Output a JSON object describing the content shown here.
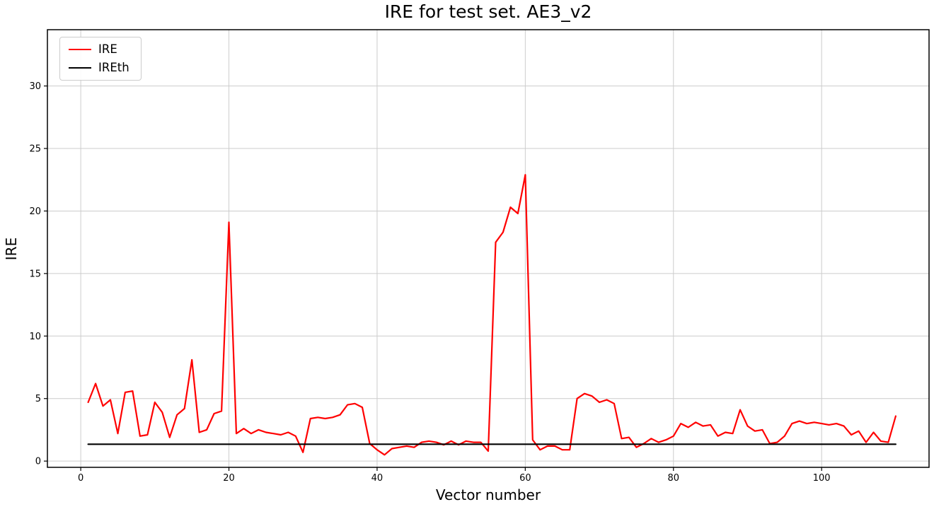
{
  "title": "IRE for test set. AE3_v2",
  "chart_data": {
    "type": "line",
    "title": "IRE for test set. AE3_v2",
    "xlabel": "Vector number",
    "ylabel": "IRE",
    "xlim": [
      -4.5,
      114.5
    ],
    "ylim": [
      -0.5,
      34.5
    ],
    "xticks": [
      0,
      20,
      40,
      60,
      80,
      100
    ],
    "yticks": [
      0,
      5,
      10,
      15,
      20,
      25,
      30
    ],
    "grid": true,
    "legend_position": "upper-left",
    "colors": {
      "ire": "#ff0000",
      "ireth": "#000000",
      "grid": "#cccccc",
      "spine": "#000000"
    },
    "threshold_value": 1.35,
    "series": [
      {
        "name": "IRE",
        "color": "#ff0000",
        "x": [
          1,
          2,
          3,
          4,
          5,
          6,
          7,
          8,
          9,
          10,
          11,
          12,
          13,
          14,
          15,
          16,
          17,
          18,
          19,
          20,
          21,
          22,
          23,
          24,
          25,
          26,
          27,
          28,
          29,
          30,
          31,
          32,
          33,
          34,
          35,
          36,
          37,
          38,
          39,
          40,
          41,
          42,
          43,
          44,
          45,
          46,
          47,
          48,
          49,
          50,
          51,
          52,
          53,
          54,
          55,
          56,
          57,
          58,
          59,
          60,
          61,
          62,
          63,
          64,
          65,
          66,
          67,
          68,
          69,
          70,
          71,
          72,
          73,
          74,
          75,
          76,
          77,
          78,
          79,
          80,
          81,
          82,
          83,
          84,
          85,
          86,
          87,
          88,
          89,
          90,
          91,
          92,
          93,
          94,
          95,
          96,
          97,
          98,
          99,
          100,
          101,
          102,
          103,
          104,
          105,
          106,
          107,
          108,
          109,
          110
        ],
        "y": [
          4.7,
          6.2,
          4.4,
          4.9,
          2.2,
          5.5,
          5.6,
          2.0,
          2.1,
          4.7,
          3.9,
          1.9,
          3.7,
          4.2,
          8.1,
          2.3,
          2.5,
          3.8,
          4.0,
          19.1,
          2.2,
          2.6,
          2.2,
          2.5,
          2.3,
          2.2,
          2.1,
          2.3,
          2.0,
          0.7,
          3.4,
          3.5,
          3.4,
          3.5,
          3.7,
          4.5,
          4.6,
          4.3,
          1.4,
          0.9,
          0.5,
          1.0,
          1.1,
          1.2,
          1.1,
          1.5,
          1.6,
          1.5,
          1.3,
          1.6,
          1.3,
          1.6,
          1.5,
          1.5,
          0.8,
          17.5,
          18.3,
          20.3,
          19.8,
          22.9,
          1.7,
          0.9,
          1.2,
          1.2,
          0.9,
          0.9,
          5.0,
          5.4,
          5.2,
          4.7,
          4.9,
          4.6,
          1.8,
          1.9,
          1.1,
          1.4,
          1.8,
          1.5,
          1.7,
          2.0,
          3.0,
          2.7,
          3.1,
          2.8,
          2.9,
          2.0,
          2.3,
          2.2,
          4.1,
          2.8,
          2.4,
          2.5,
          1.4,
          1.5,
          2.0,
          3.0,
          3.2,
          3.0,
          3.1,
          3.0,
          2.9,
          3.0,
          2.8,
          2.1,
          2.4,
          1.5,
          2.3,
          1.6,
          1.5,
          3.6
        ]
      },
      {
        "name": "IREth",
        "color": "#000000",
        "x": [
          1,
          110
        ],
        "y": [
          1.35,
          1.35
        ]
      }
    ]
  }
}
